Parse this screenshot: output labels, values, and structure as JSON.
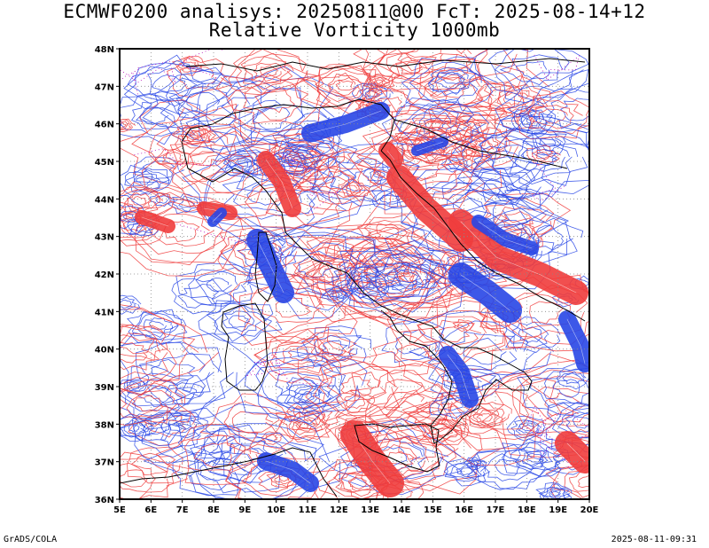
{
  "title_line1": "ECMWF0200 analisys: 20250811@00 FcT: 2025-08-14+12",
  "title_line2": "Relative Vorticity 1000mb",
  "footer_left": "GrADS/COLA",
  "footer_right": "2025-08-11-09:31",
  "colors": {
    "positive": "#f03c3c",
    "negative": "#2846e6",
    "zero": "#b400b4",
    "coast": "#000000"
  },
  "map": {
    "lon_range": [
      5,
      20
    ],
    "lat_range": [
      36,
      48
    ],
    "lon_labels": [
      "5E",
      "6E",
      "7E",
      "8E",
      "9E",
      "10E",
      "11E",
      "12E",
      "13E",
      "14E",
      "15E",
      "16E",
      "17E",
      "18E",
      "19E",
      "20E"
    ],
    "lat_labels": [
      "36N",
      "37N",
      "38N",
      "39N",
      "40N",
      "41N",
      "42N",
      "43N",
      "44N",
      "45N",
      "46N",
      "47N",
      "48N"
    ]
  }
}
